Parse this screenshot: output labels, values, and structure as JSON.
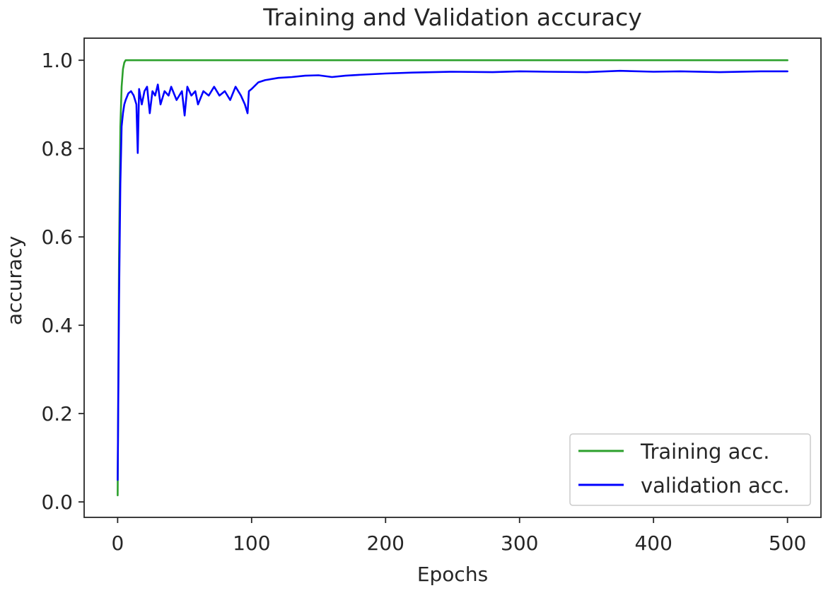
{
  "chart_data": {
    "type": "line",
    "title": "Training and Validation accuracy",
    "xlabel": "Epochs",
    "ylabel": "accuracy",
    "xlim": [
      -25,
      525
    ],
    "ylim": [
      -0.035,
      1.05
    ],
    "xticks": [
      0,
      100,
      200,
      300,
      400,
      500
    ],
    "yticks": [
      0.0,
      0.2,
      0.4,
      0.6,
      0.8,
      1.0
    ],
    "xtick_labels": [
      "0",
      "100",
      "200",
      "300",
      "400",
      "500"
    ],
    "ytick_labels": [
      "0.0",
      "0.2",
      "0.4",
      "0.6",
      "0.8",
      "1.0"
    ],
    "grid": false,
    "legend_position": "lower-right",
    "series": [
      {
        "name": "Training acc.",
        "color": "#2ca02c",
        "x": [
          0,
          1,
          2,
          3,
          4,
          5,
          6,
          8,
          10,
          20,
          50,
          100,
          150,
          200,
          250,
          300,
          350,
          400,
          450,
          500
        ],
        "values": [
          0.015,
          0.55,
          0.85,
          0.94,
          0.98,
          0.995,
          1.0,
          1.0,
          1.0,
          1.0,
          1.0,
          1.0,
          1.0,
          1.0,
          1.0,
          1.0,
          1.0,
          1.0,
          1.0,
          1.0
        ]
      },
      {
        "name": "validation acc.",
        "color": "#0000ff",
        "x": [
          0,
          1,
          2,
          3,
          4,
          5,
          6,
          8,
          10,
          12,
          14,
          15,
          16,
          18,
          20,
          22,
          24,
          26,
          28,
          30,
          32,
          35,
          38,
          40,
          44,
          48,
          50,
          52,
          55,
          58,
          60,
          64,
          68,
          72,
          76,
          80,
          84,
          88,
          92,
          95,
          97,
          98,
          100,
          105,
          110,
          120,
          130,
          140,
          150,
          160,
          170,
          180,
          200,
          220,
          250,
          280,
          300,
          320,
          350,
          375,
          400,
          420,
          450,
          480,
          500
        ],
        "values": [
          0.05,
          0.45,
          0.72,
          0.85,
          0.88,
          0.9,
          0.91,
          0.925,
          0.93,
          0.92,
          0.9,
          0.79,
          0.935,
          0.9,
          0.93,
          0.94,
          0.88,
          0.93,
          0.92,
          0.945,
          0.9,
          0.93,
          0.92,
          0.94,
          0.91,
          0.93,
          0.875,
          0.94,
          0.92,
          0.93,
          0.9,
          0.93,
          0.92,
          0.94,
          0.92,
          0.93,
          0.91,
          0.94,
          0.92,
          0.9,
          0.88,
          0.93,
          0.935,
          0.95,
          0.955,
          0.96,
          0.962,
          0.965,
          0.966,
          0.962,
          0.965,
          0.967,
          0.97,
          0.972,
          0.974,
          0.973,
          0.975,
          0.974,
          0.973,
          0.976,
          0.974,
          0.975,
          0.973,
          0.975,
          0.975
        ]
      }
    ]
  }
}
